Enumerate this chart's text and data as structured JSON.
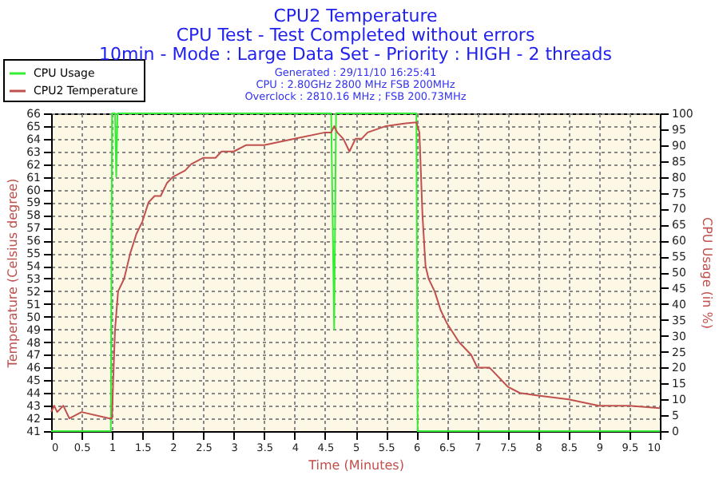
{
  "chart_data": {
    "type": "line",
    "title": "CPU2 Temperature",
    "subtitle": "CPU Test - Test Completed without errors",
    "annotations": [
      "10min - Mode : Large Data Set - Priority : HIGH - 2 threads",
      "Generated : 29/11/10 16:25:41",
      "CPU : 2.80GHz 2800 MHz FSB 200MHz",
      "Overclock : 2810.16 MHz ; FSB 200.73MHz"
    ],
    "xlabel": "Time (Minutes)",
    "ylabel": "Temperature (Celsius degree)",
    "y2label": "CPU Usage (in %)",
    "xlim": [
      0,
      10
    ],
    "xticks": [
      0,
      0.5,
      1,
      1.5,
      2,
      2.5,
      3,
      3.5,
      4,
      4.5,
      5,
      5.5,
      6,
      6.5,
      7,
      7.5,
      8,
      8.5,
      9,
      9.5,
      10
    ],
    "ylim": [
      41,
      66
    ],
    "yticks": [
      41,
      42,
      43,
      44,
      45,
      46,
      47,
      48,
      49,
      50,
      51,
      52,
      53,
      54,
      55,
      56,
      57,
      58,
      59,
      60,
      61,
      62,
      63,
      64,
      65,
      66
    ],
    "y2lim": [
      0,
      100
    ],
    "y2ticks": [
      0,
      5,
      10,
      15,
      20,
      25,
      30,
      35,
      40,
      45,
      50,
      55,
      60,
      65,
      70,
      75,
      80,
      85,
      90,
      95,
      100
    ],
    "grid": true,
    "legend": "top left",
    "marker": "none",
    "line_style": "solid",
    "series": [
      {
        "name": "CPU Usage",
        "color": "#33ee33",
        "axis": "y2",
        "x": [
          0,
          0.98,
          1.0,
          1.05,
          1.07,
          1.09,
          4.6,
          4.65,
          4.68,
          6.0,
          6.02,
          10
        ],
        "values": [
          0,
          0,
          100,
          100,
          80,
          100,
          100,
          32,
          100,
          100,
          0,
          0
        ]
      },
      {
        "name": "CPU2 Temperature",
        "color": "#c0504d",
        "axis": "y",
        "x": [
          0,
          0.05,
          0.1,
          0.2,
          0.3,
          0.5,
          0.95,
          1.0,
          1.02,
          1.05,
          1.1,
          1.2,
          1.3,
          1.4,
          1.5,
          1.6,
          1.7,
          1.8,
          1.9,
          2.0,
          2.2,
          2.3,
          2.5,
          2.7,
          2.8,
          3.0,
          3.2,
          3.5,
          4.0,
          4.5,
          4.6,
          4.65,
          4.7,
          4.8,
          4.9,
          5.0,
          5.1,
          5.2,
          5.5,
          5.8,
          6.0,
          6.05,
          6.1,
          6.15,
          6.2,
          6.3,
          6.4,
          6.5,
          6.7,
          6.9,
          7.0,
          7.2,
          7.5,
          7.7,
          8.0,
          8.5,
          9.0,
          9.5,
          10
        ],
        "values": [
          42.5,
          43,
          42.5,
          43,
          42,
          42.5,
          42,
          42,
          45,
          49,
          52,
          53,
          55,
          56.5,
          57.5,
          59,
          59.5,
          59.5,
          60.5,
          61,
          61.5,
          62,
          62.5,
          62.5,
          63,
          63,
          63.5,
          63.5,
          64,
          64.5,
          64.5,
          65,
          64.5,
          64,
          63,
          64,
          64,
          64.5,
          65,
          65.2,
          65.3,
          64.5,
          58,
          54,
          53,
          52,
          50.5,
          49.5,
          48,
          47,
          46,
          46,
          44.5,
          44,
          43.8,
          43.5,
          43,
          43,
          42.8
        ]
      }
    ]
  }
}
